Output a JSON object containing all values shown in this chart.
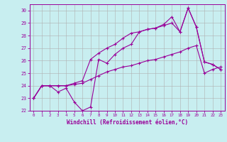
{
  "bg_color": "#c8eef0",
  "grid_color": "#b0b0b0",
  "line_color": "#990099",
  "xlabel": "Windchill (Refroidissement éolien,°C)",
  "xlabel_color": "#990099",
  "tick_color": "#990099",
  "xlim": [
    -0.5,
    23.5
  ],
  "ylim": [
    22,
    30.5
  ],
  "yticks": [
    22,
    23,
    24,
    25,
    26,
    27,
    28,
    29,
    30
  ],
  "xticks": [
    0,
    1,
    2,
    3,
    4,
    5,
    6,
    7,
    8,
    9,
    10,
    11,
    12,
    13,
    14,
    15,
    16,
    17,
    18,
    19,
    20,
    21,
    22,
    23
  ],
  "series": [
    [
      23.0,
      24.0,
      24.0,
      23.5,
      23.8,
      22.7,
      22.0,
      22.3,
      26.1,
      25.8,
      26.5,
      27.0,
      27.3,
      28.3,
      28.5,
      28.6,
      28.9,
      29.5,
      28.3,
      30.2,
      28.7,
      25.9,
      25.7,
      25.3
    ],
    [
      23.0,
      24.0,
      24.0,
      24.0,
      24.0,
      24.1,
      24.2,
      24.5,
      24.8,
      25.1,
      25.3,
      25.5,
      25.6,
      25.8,
      26.0,
      26.1,
      26.3,
      26.5,
      26.7,
      27.0,
      27.2,
      25.0,
      25.3,
      25.5
    ],
    [
      23.0,
      24.0,
      24.0,
      24.0,
      24.0,
      24.2,
      24.4,
      26.1,
      26.6,
      27.0,
      27.3,
      27.8,
      28.2,
      28.3,
      28.5,
      28.6,
      28.8,
      29.0,
      28.3,
      30.2,
      28.7,
      25.9,
      25.7,
      25.3
    ]
  ]
}
